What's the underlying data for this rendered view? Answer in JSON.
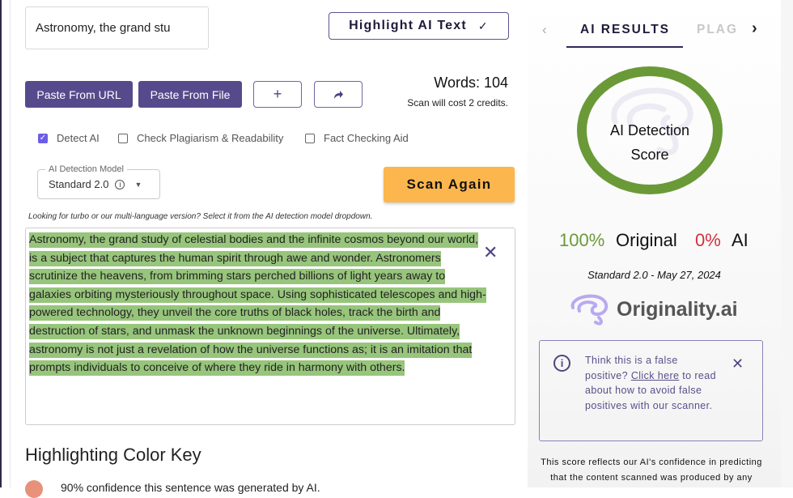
{
  "title_input": {
    "value": "Astronomy, the grand stu"
  },
  "toolbar": {
    "highlight_label": "Highlight AI Text",
    "highlight_check": "✓",
    "paste_url": "Paste From URL",
    "paste_file": "Paste From File",
    "add_icon": "plus-icon",
    "share_icon": "share-icon"
  },
  "stats": {
    "words": "Words: 104",
    "cost": "Scan will cost 2 credits."
  },
  "options": [
    {
      "label": "Detect AI",
      "checked": true
    },
    {
      "label": "Check Plagiarism & Readability",
      "checked": false
    },
    {
      "label": "Fact Checking Aid",
      "checked": false
    }
  ],
  "model": {
    "label": "AI Detection Model",
    "value": "Standard 2.0"
  },
  "scan_label": "Scan Again",
  "hint": "Looking for turbo or our multi-language version? Select it from the AI detection model dropdown.",
  "editor": {
    "highlight_color": "#97c57b",
    "lines": [
      "Astronomy, the grand study of celestial bodies and the infinite cosmos beyond our world,",
      "is a subject that captures the human spirit through awe and wonder. Astronomers",
      "scrutinize the heavens, from brimming stars perched billions of light years away to",
      "galaxies orbiting mysteriously throughout space. Using sophisticated telescopes and high-",
      "powered technology, they unveil the core truths of black holes, track the birth and",
      "destruction of stars, and unmask the unknown beginnings of the universe. Ultimately,",
      "astronomy is not just a revelation of how the universe functions as; it is an imitation that",
      "prompts individuals to conceive of where they ride in harmony with others."
    ]
  },
  "color_key": {
    "title": "Highlighting Color Key",
    "first_item": "90% confidence this sentence was generated by AI.",
    "first_color": "#e8917a"
  },
  "results": {
    "tabs": [
      "AI RESULTS",
      "PLAG"
    ],
    "ring_label_1": "AI Detection",
    "ring_label_2": "Score",
    "ring_color": "#6a9a38",
    "original_pct": "100%",
    "original_label": "Original",
    "ai_pct": "0%",
    "ai_label": "AI",
    "model_date": "Standard 2.0 - May 27, 2024",
    "logo_text": "Originality.ai",
    "fp_1": "Think this is a false positive?",
    "fp_link": "Click here",
    "fp_2": "to read about how to avoid false positives with our scanner.",
    "footer": "This score reflects our AI's confidence in predicting that the content scanned was produced by any"
  }
}
